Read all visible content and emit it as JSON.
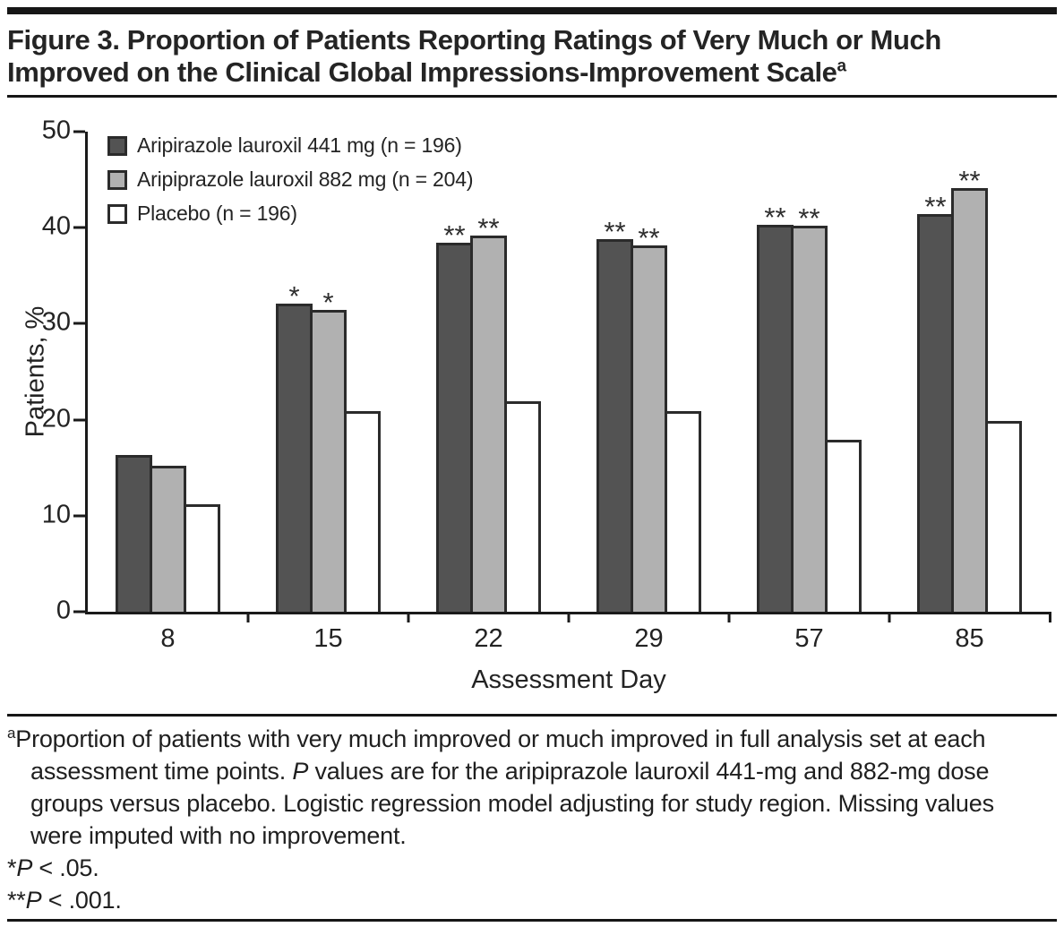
{
  "figure": {
    "title": "Figure 3. Proportion of Patients Reporting Ratings of Very Much or Much Improved on the Clinical Global Impressions-Improvement Scale",
    "title_superscript": "a"
  },
  "chart_data": {
    "type": "bar",
    "title": "",
    "xlabel": "Assessment Day",
    "ylabel": "Patients, %",
    "ylim": [
      0,
      50
    ],
    "yticks": [
      0,
      10,
      20,
      30,
      40,
      50
    ],
    "grid": "off",
    "legend_position": "top-left-inside",
    "categories": [
      "8",
      "15",
      "22",
      "29",
      "57",
      "85"
    ],
    "series": [
      {
        "name": "Aripirazole lauroxil 441 mg",
        "label": "Aripirazole lauroxil 441 mg (n = 196)",
        "fill": "#535353",
        "values": [
          16.3,
          32.1,
          38.4,
          38.8,
          40.3,
          41.4
        ],
        "significance": [
          "",
          "*",
          "**",
          "**",
          "**",
          "**"
        ]
      },
      {
        "name": "Aripiprazole lauroxil 882 mg",
        "label": "Aripiprazole lauroxil 882 mg (n = 204)",
        "fill": "#b1b1b1",
        "values": [
          15.2,
          31.4,
          39.2,
          38.2,
          40.2,
          44.1
        ],
        "significance": [
          "",
          "*",
          "**",
          "**",
          "**",
          "**"
        ]
      },
      {
        "name": "Placebo",
        "label": "Placebo (n = 196)",
        "fill": "#ffffff",
        "values": [
          11.2,
          20.9,
          21.9,
          20.9,
          17.9,
          19.9
        ],
        "significance": [
          "",
          "",
          "",
          "",
          "",
          ""
        ]
      }
    ],
    "bar_outline_color": "#2b2b2b",
    "axis_color": "#1a1a1a"
  },
  "footnote": {
    "marker": "a",
    "text_before_p": "Proportion of patients with very much improved or much improved in full analysis set at each assessment time points. ",
    "p_italic": "P",
    "text_after_p": " values are for the aripiprazole lauroxil 441-mg and 882-mg dose groups versus placebo. Logistic regression model adjusting for study region. Missing values were imputed with no improvement.",
    "sig1_stars": "*",
    "sig1_p": "P",
    "sig1_rest": " < .05.",
    "sig2_stars": "**",
    "sig2_p": "P",
    "sig2_rest": " < .001."
  }
}
